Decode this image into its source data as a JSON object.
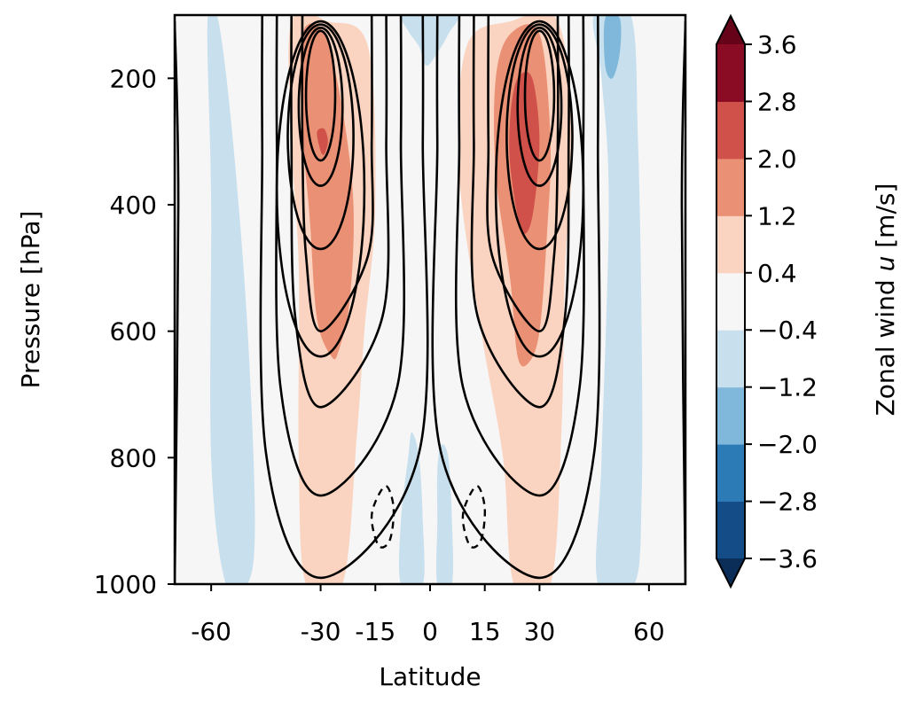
{
  "chart_data": {
    "type": "contourf",
    "xlabel": "Latitude",
    "ylabel": "Pressure [hPa]",
    "xlim": [
      -70,
      70
    ],
    "ylim": [
      1000,
      100
    ],
    "y_inverted": true,
    "xticks": [
      -60,
      -30,
      -15,
      0,
      15,
      30,
      60
    ],
    "xtick_labels": [
      "-60",
      "-30",
      "-15",
      "0",
      "15",
      "30",
      "60"
    ],
    "yticks": [
      200,
      400,
      600,
      800,
      1000
    ],
    "ytick_labels": [
      "200",
      "400",
      "600",
      "800",
      "1000"
    ],
    "colorbar": {
      "label_prefix": "Zonal wind ",
      "label_var": "u",
      "label_suffix": " [m/s]",
      "levels": [
        -3.6,
        -2.8,
        -2.0,
        -1.2,
        -0.4,
        0.4,
        1.2,
        2.0,
        2.8,
        3.6
      ],
      "tick_labels": [
        "3.6",
        "2.8",
        "2.0",
        "1.2",
        "0.4",
        "−0.4",
        "−1.2",
        "−2.0",
        "−2.8",
        "−3.6"
      ],
      "colors": [
        "#144c87",
        "#2c7bb6",
        "#7fb8da",
        "#c8e0ee",
        "#f6f6f6",
        "#fad4c0",
        "#ea9175",
        "#d0514a",
        "#8a0c24"
      ],
      "extend": "both",
      "under_color": "#0b2e58",
      "over_color": "#670319"
    },
    "colors": {
      "light_blue": "#c8e0ee",
      "mid_blue": "#7fb8da",
      "neutral": "#f6f6f6",
      "light_red": "#fad4c0",
      "mid_red": "#ea9175",
      "dark_red": "#d0514a"
    },
    "filled_anomalies": [
      {
        "sign": "positive",
        "lat": -30,
        "p_top": 120,
        "p_bottom": 1000,
        "max": 2.8
      },
      {
        "sign": "positive",
        "lat": 28,
        "p_top": 120,
        "p_bottom": 1000,
        "max": 2.8
      },
      {
        "sign": "negative",
        "lat": -55,
        "p_top": 120,
        "p_bottom": 1000,
        "min": -1.2
      },
      {
        "sign": "negative",
        "lat": 55,
        "p_top": 100,
        "p_bottom": 1000,
        "min": -2.0
      },
      {
        "sign": "negative",
        "lat": 0,
        "p_top": 100,
        "p_bottom": 180,
        "min": -1.2
      },
      {
        "sign": "negative",
        "lat": -5,
        "p_top": 760,
        "p_bottom": 1000,
        "min": -1.2
      },
      {
        "sign": "negative",
        "lat": 5,
        "p_top": 760,
        "p_bottom": 1000,
        "min": -1.2
      }
    ],
    "jet_contours": [
      {
        "lat": -30,
        "top_p": 120,
        "bottom_p": 980
      },
      {
        "lat": 30,
        "top_p": 120,
        "bottom_p": 980
      }
    ],
    "dashed_contours": [
      {
        "lat": -13,
        "p_top": 845,
        "p_bottom": 940
      },
      {
        "lat": 12,
        "p_top": 845,
        "p_bottom": 940
      }
    ]
  }
}
